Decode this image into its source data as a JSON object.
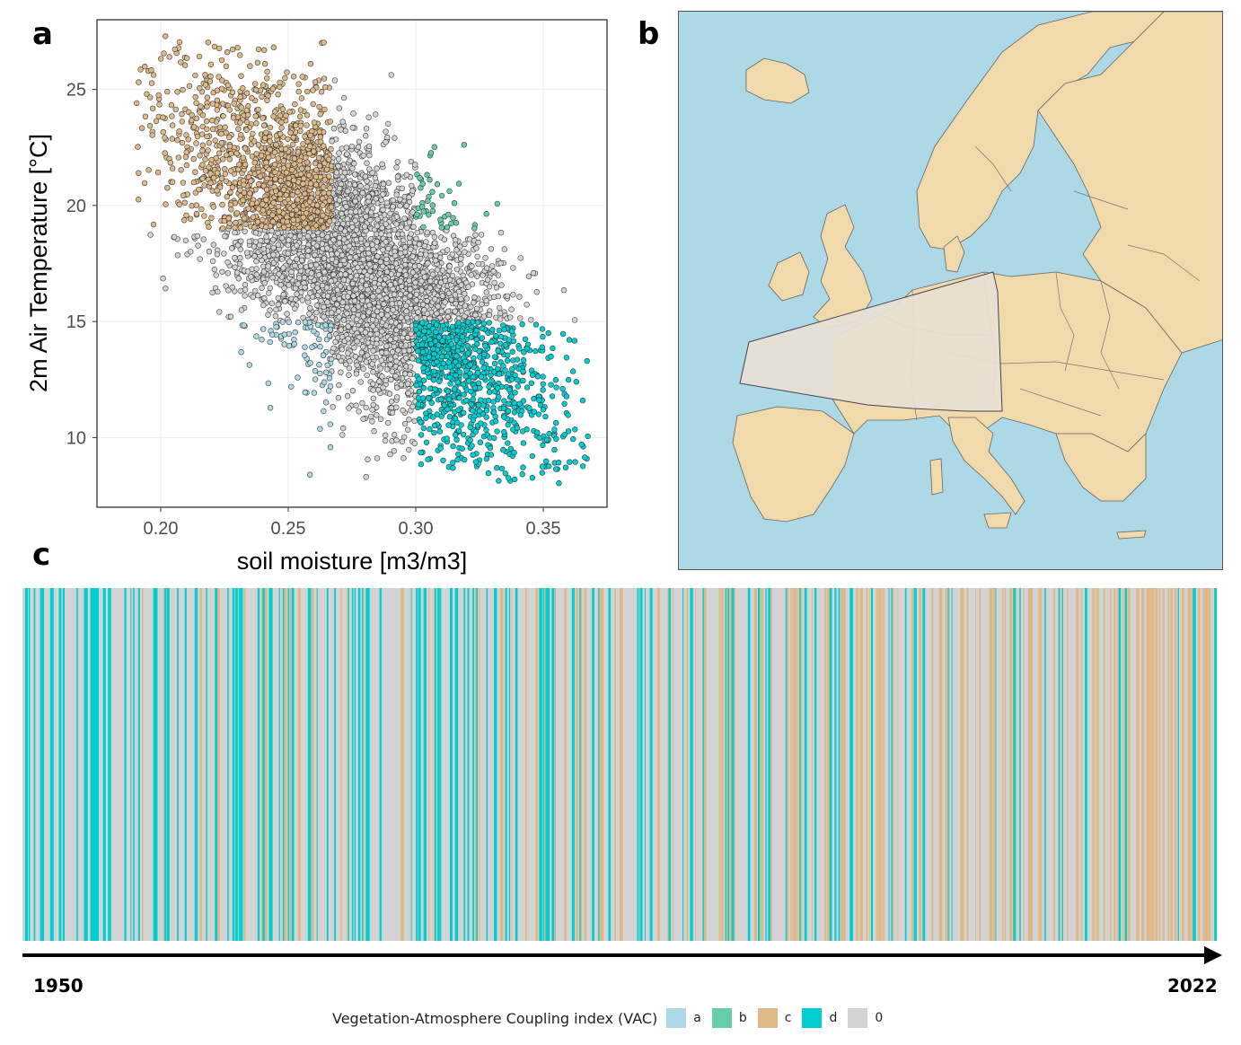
{
  "panel_letters": {
    "a": "a",
    "b": "b",
    "c": "c"
  },
  "colors": {
    "a": "#add8e6",
    "b": "#66cdaa",
    "c": "#deb887",
    "d": "#00ced1",
    "0": "#d3d3d3",
    "sea": "#add8e6",
    "land": "#f0d9aa",
    "region": "#e8e0d4"
  },
  "chart_data": [
    {
      "type": "scatter",
      "panel": "a",
      "xlabel": "soil moisture [m3/m3]",
      "ylabel": "2m Air Temperature [°C]",
      "xlim": [
        0.175,
        0.375
      ],
      "ylim": [
        7.0,
        28.0
      ],
      "xticks": [
        "0.20",
        "0.25",
        "0.30",
        "0.35"
      ],
      "yticks": [
        "10",
        "15",
        "20",
        "25"
      ],
      "grid": true,
      "classes": [
        {
          "name": "c",
          "region": "soil moisture < 0.267 and temperature > 19",
          "approx_points": 700
        },
        {
          "name": "b",
          "region": "soil moisture > 0.30 and temperature > 19",
          "approx_points": 160
        },
        {
          "name": "a",
          "region": "soil moisture < 0.267 and temperature < 15",
          "approx_points": 170
        },
        {
          "name": "d",
          "region": "soil moisture > 0.30 and temperature < 15",
          "approx_points": 750
        },
        {
          "name": "0",
          "region": "all other points",
          "approx_points": 4000
        }
      ],
      "point_cloud": {
        "sm_range": [
          0.19,
          0.37
        ],
        "temp_range": [
          7.8,
          27.4
        ],
        "trend": "temperature decreases as soil moisture increases"
      }
    },
    {
      "type": "heatmap",
      "panel": "c",
      "x_start": "1950",
      "x_end": "2022",
      "categories": [
        "a",
        "b",
        "c",
        "d",
        "0"
      ],
      "pattern": "daily VAC class stripes; class d frequent in early decades, class c increasingly frequent toward 2022, class 0 dominant throughout"
    }
  ],
  "map": {
    "panel": "b",
    "description_key": "europe-map-with-highlighted-study-region"
  },
  "timeline": {
    "start_label": "1950",
    "end_label": "2022"
  },
  "legend": {
    "title": "Vegetation-Atmosphere Coupling index (VAC)",
    "items": [
      {
        "label": "a",
        "color": "#add8e6"
      },
      {
        "label": "b",
        "color": "#66cdaa"
      },
      {
        "label": "c",
        "color": "#deb887"
      },
      {
        "label": "d",
        "color": "#00ced1"
      },
      {
        "label": "0",
        "color": "#d3d3d3"
      }
    ]
  }
}
